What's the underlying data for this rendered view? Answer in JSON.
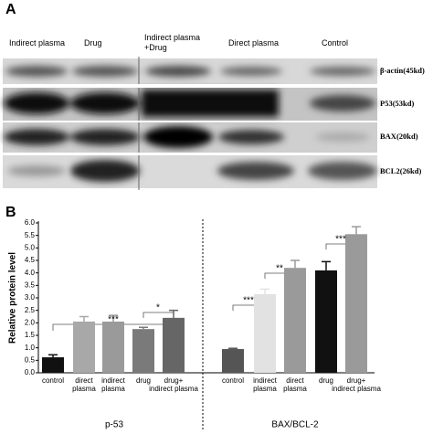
{
  "blot": {
    "panel_label": "A",
    "lane_labels": [
      "Indirect plasma",
      "Drug",
      "Indirect plasma\n+Drug",
      "Direct plasma",
      "Control"
    ],
    "band_labels": [
      "β-actin(45kd)",
      "P53(53kd)",
      "BAX(20kd)",
      "BCL2(26kd)"
    ]
  },
  "chart_data": {
    "type": "bar",
    "panel_label": "B",
    "y_label": "Relative protein level",
    "ylim": [
      0,
      6
    ],
    "yticks": [
      {
        "value": 0,
        "label": "0.0"
      },
      0.5,
      {
        "value": 1,
        "label": "1.0"
      },
      1.5,
      {
        "value": 2,
        "label": "2.0"
      },
      2.5,
      {
        "value": 3,
        "label": "3.0"
      },
      3.5,
      {
        "value": 4,
        "label": "4.0"
      },
      4.5,
      {
        "value": 5,
        "label": "5.0"
      },
      5.5,
      {
        "value": 6,
        "label": "6.0"
      }
    ],
    "groups": [
      {
        "name": "p-53",
        "categories": [
          "control",
          "direct\nplasma",
          "indirect\nplasma",
          "drug",
          "drug+\nindirect plasma"
        ],
        "values": [
          0.62,
          2.05,
          2.05,
          1.75,
          2.2
        ],
        "errors": [
          0.1,
          0.2,
          0.25,
          0.07,
          0.3
        ],
        "colors": [
          "#111111",
          "#a8a8a8",
          "#9a9a9a",
          "#7a7a7a",
          "#666666"
        ],
        "annotations": [
          "***",
          "*"
        ]
      },
      {
        "name": "BAX/BCL-2",
        "categories": [
          "control",
          "indirect\nplasma",
          "direct\nplasma",
          "drug",
          "drug+\nindirect plasma"
        ],
        "values": [
          0.95,
          3.15,
          4.2,
          4.1,
          5.55
        ],
        "errors": [
          0.03,
          0.2,
          0.3,
          0.35,
          0.3
        ],
        "colors": [
          "#555555",
          "#e2e2e2",
          "#9a9a9a",
          "#111111",
          "#9a9a9a"
        ],
        "annotations": [
          "***",
          "**",
          "***"
        ]
      }
    ]
  }
}
